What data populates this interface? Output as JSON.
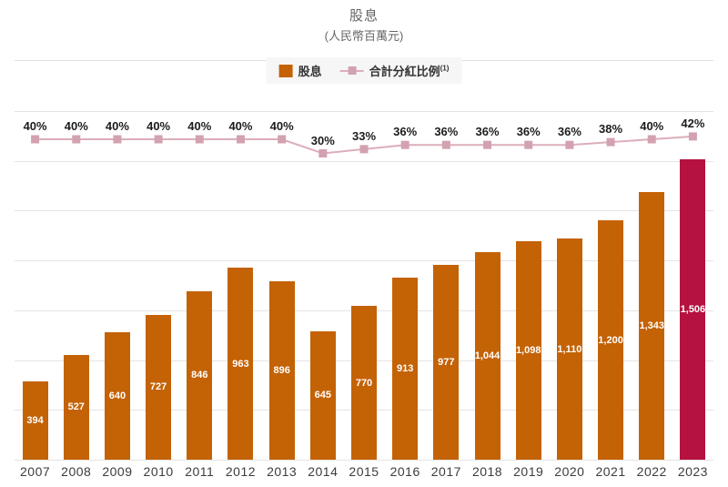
{
  "chart": {
    "title": "股息",
    "subtitle": "(人民幣百萬元)"
  },
  "legend": {
    "items": [
      {
        "label": "股息",
        "type": "bar"
      },
      {
        "label": "合計分紅比例",
        "footnote": "(1)",
        "type": "line"
      }
    ]
  },
  "chart_data": {
    "type": "bar+line",
    "title": "股息",
    "subtitle": "(人民幣百萬元)",
    "categories": [
      "2007",
      "2008",
      "2009",
      "2010",
      "2011",
      "2012",
      "2013",
      "2014",
      "2015",
      "2016",
      "2017",
      "2018",
      "2019",
      "2020",
      "2021",
      "2022",
      "2023"
    ],
    "series": [
      {
        "name": "股息",
        "type": "bar",
        "values": [
          394,
          527,
          640,
          727,
          846,
          963,
          896,
          645,
          770,
          913,
          977,
          1044,
          1098,
          1110,
          1200,
          1343,
          1506
        ],
        "color": "#c46206",
        "highlight_color": "#b5123f",
        "highlight_index": 16,
        "label_color": "#ffffff"
      },
      {
        "name": "合計分紅比例(1)",
        "type": "line",
        "unit": "%",
        "values": [
          40,
          40,
          40,
          40,
          40,
          40,
          40,
          30,
          33,
          36,
          36,
          36,
          36,
          36,
          38,
          40,
          42
        ],
        "color": "#dcaeb9",
        "marker_color": "#d2a2b1",
        "label_color": "#1c1c1c"
      }
    ],
    "ylim": [
      0,
      1750
    ],
    "grid_step": 250,
    "grid": true,
    "y_axis_labels_visible": false,
    "legend_position": "top"
  },
  "colors": {
    "grid": "#e4e4e4",
    "header_rule": "#e0e0e0",
    "legend_background": "#f6f6f6",
    "title_text": "#666666",
    "axis_text": "#3c3c3c"
  }
}
